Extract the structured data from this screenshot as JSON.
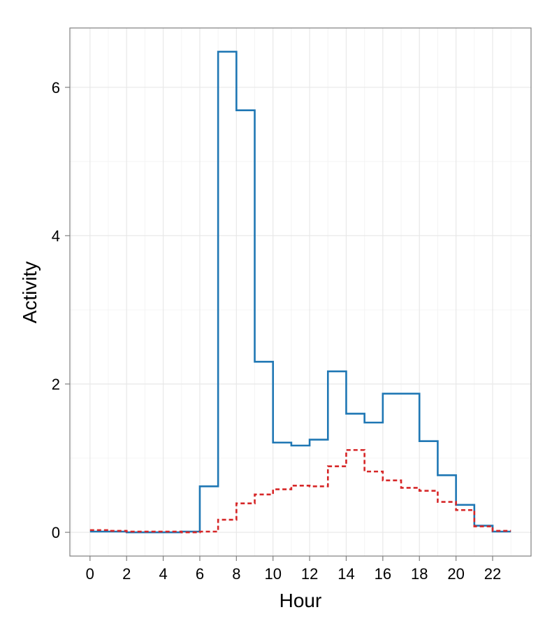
{
  "chart_data": {
    "type": "line",
    "step": true,
    "xlabel": "Hour",
    "ylabel": "Activity",
    "xlim": [
      -1.1,
      24.1
    ],
    "ylim": [
      -0.32,
      6.8
    ],
    "xticks": [
      0,
      2,
      4,
      6,
      8,
      10,
      12,
      14,
      16,
      18,
      20,
      22
    ],
    "xtick_labels": [
      "0",
      "2",
      "4",
      "6",
      "8",
      "10",
      "12",
      "14",
      "16",
      "18",
      "20",
      "22"
    ],
    "yticks": [
      0,
      2,
      4,
      6
    ],
    "ytick_labels": [
      "0",
      "2",
      "4",
      "6"
    ],
    "grid": true,
    "legend": "none",
    "x": [
      0,
      1,
      2,
      3,
      4,
      5,
      6,
      7,
      8,
      9,
      10,
      11,
      12,
      13,
      14,
      15,
      16,
      17,
      18,
      19,
      20,
      21,
      22,
      23
    ],
    "series": [
      {
        "color": "#1f77b4",
        "linestyle": "solid",
        "values": [
          0.01,
          0.01,
          0.0,
          0.0,
          0.0,
          0.01,
          0.62,
          6.48,
          5.69,
          2.3,
          1.21,
          1.17,
          1.25,
          2.17,
          1.6,
          1.48,
          1.87,
          1.87,
          1.23,
          0.77,
          0.37,
          0.09,
          0.01,
          0.01
        ]
      },
      {
        "color": "#d62728",
        "linestyle": "dashed",
        "values": [
          0.03,
          0.02,
          0.01,
          0.01,
          0.01,
          0.0,
          0.01,
          0.17,
          0.39,
          0.51,
          0.58,
          0.63,
          0.62,
          0.89,
          1.11,
          0.82,
          0.7,
          0.6,
          0.56,
          0.41,
          0.3,
          0.08,
          0.02,
          0.02
        ]
      }
    ]
  }
}
